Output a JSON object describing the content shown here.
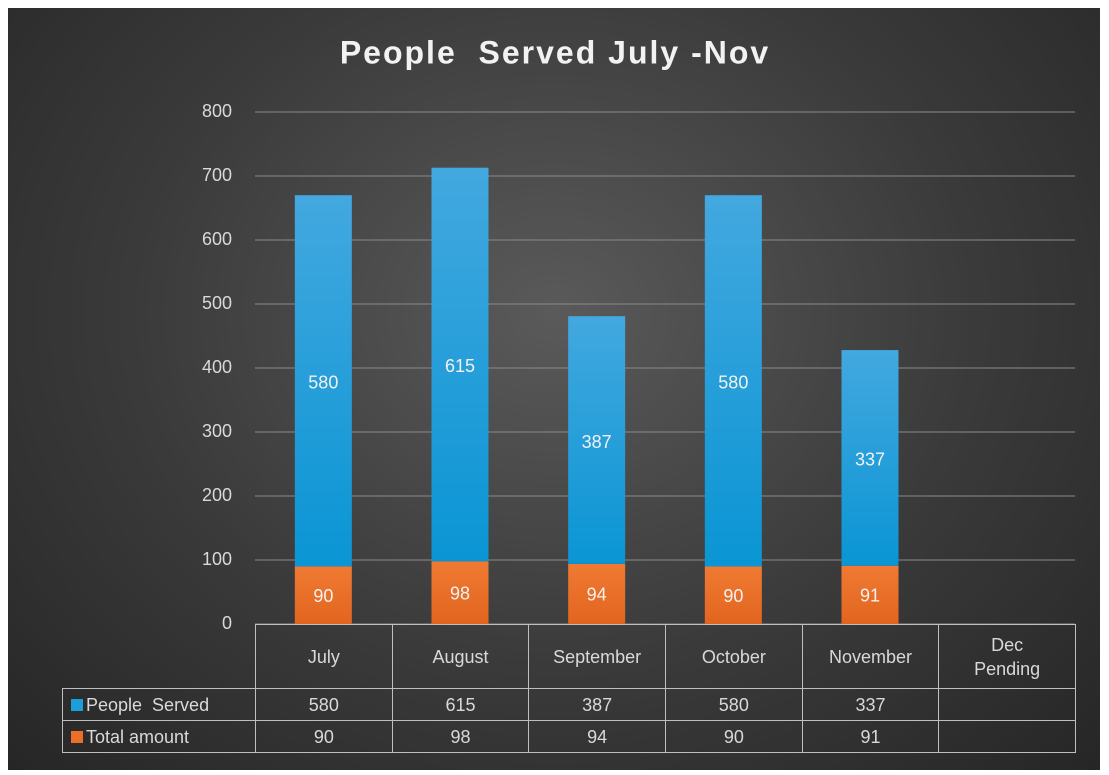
{
  "chart_data": {
    "type": "bar",
    "stacked": true,
    "title": "People  Served July -Nov",
    "categories": [
      "July",
      "August",
      "September",
      "October",
      "November",
      "Dec Pending"
    ],
    "series": [
      {
        "name": "People  Served",
        "color": "#1a9fd8",
        "values": [
          580,
          615,
          387,
          580,
          337,
          null
        ]
      },
      {
        "name": "Total amount",
        "color": "#ea6f28",
        "values": [
          90,
          98,
          94,
          90,
          91,
          null
        ]
      }
    ],
    "ylim": [
      0,
      800
    ],
    "yticks": [
      0,
      100,
      200,
      300,
      400,
      500,
      600,
      700,
      800
    ],
    "grid": true,
    "data_table": true
  }
}
